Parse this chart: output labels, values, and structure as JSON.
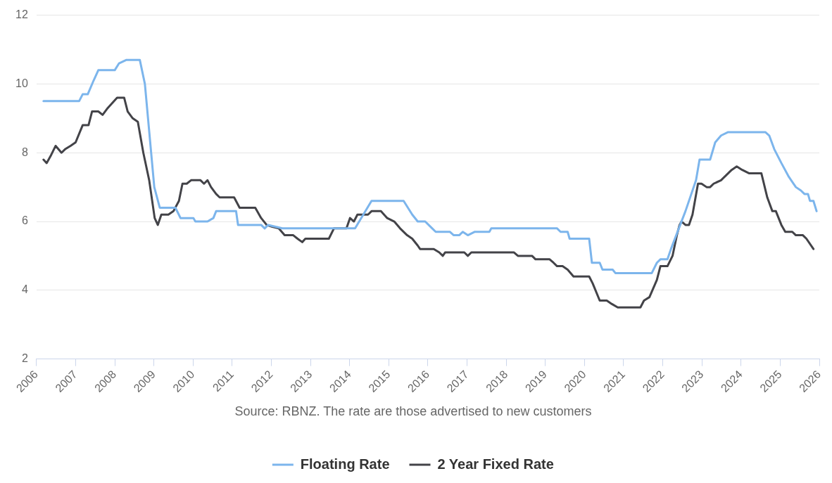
{
  "chart_data": {
    "type": "line",
    "annotations": [
      "Source: RBNZ. The rate are those advertised to new customers"
    ],
    "xlim": [
      2006,
      2026
    ],
    "xticks": [
      2006,
      2007,
      2008,
      2009,
      2010,
      2011,
      2012,
      2013,
      2014,
      2015,
      2016,
      2017,
      2018,
      2019,
      2020,
      2021,
      2022,
      2023,
      2024,
      2025,
      2026
    ],
    "ylim": [
      2,
      12
    ],
    "yticks": [
      2,
      4,
      6,
      8,
      10,
      12
    ],
    "grid": "y",
    "legend": "bottom",
    "marker": "none",
    "line_style": "solid",
    "series": [
      {
        "name": "Floating Rate",
        "color": "#7cb5ec",
        "x": [
          2006.18,
          2007.09,
          2007.18,
          2007.31,
          2007.46,
          2007.58,
          2008.0,
          2008.11,
          2008.3,
          2008.64,
          2008.77,
          2009.01,
          2009.15,
          2009.55,
          2009.68,
          2010.01,
          2010.06,
          2010.37,
          2010.52,
          2010.59,
          2011.1,
          2011.15,
          2011.74,
          2011.83,
          2011.92,
          2012.28,
          2014.14,
          2014.56,
          2015.38,
          2015.6,
          2015.74,
          2015.93,
          2016.11,
          2016.2,
          2016.56,
          2016.66,
          2016.8,
          2016.89,
          2017.02,
          2017.2,
          2017.57,
          2017.62,
          2019.3,
          2019.39,
          2019.57,
          2019.62,
          2020.12,
          2020.19,
          2020.39,
          2020.46,
          2020.72,
          2020.79,
          2021.72,
          2021.85,
          2021.94,
          2022.12,
          2022.21,
          2022.58,
          2022.85,
          2022.94,
          2023.21,
          2023.34,
          2023.49,
          2023.67,
          2024.62,
          2024.72,
          2024.85,
          2025.03,
          2025.22,
          2025.4,
          2025.53,
          2025.62,
          2025.71,
          2025.76,
          2025.85,
          2025.93
        ],
        "values": [
          9.5,
          9.5,
          9.7,
          9.7,
          10.1,
          10.4,
          10.4,
          10.6,
          10.7,
          10.7,
          10.0,
          7.0,
          6.4,
          6.4,
          6.1,
          6.1,
          6.0,
          6.0,
          6.1,
          6.3,
          6.3,
          5.9,
          5.9,
          5.8,
          5.9,
          5.8,
          5.8,
          6.6,
          6.6,
          6.2,
          6.0,
          6.0,
          5.8,
          5.7,
          5.7,
          5.6,
          5.6,
          5.7,
          5.6,
          5.7,
          5.7,
          5.8,
          5.8,
          5.7,
          5.7,
          5.5,
          5.5,
          4.8,
          4.8,
          4.6,
          4.6,
          4.5,
          4.5,
          4.8,
          4.9,
          4.9,
          5.2,
          6.3,
          7.2,
          7.8,
          7.8,
          8.3,
          8.5,
          8.6,
          8.6,
          8.5,
          8.1,
          7.7,
          7.3,
          7.0,
          6.9,
          6.8,
          6.8,
          6.6,
          6.6,
          6.3
        ]
      },
      {
        "name": "2 Year Fixed Rate",
        "color": "#434348",
        "x": [
          2006.18,
          2006.26,
          2006.36,
          2006.49,
          2006.64,
          2006.73,
          2006.87,
          2007.0,
          2007.18,
          2007.33,
          2007.42,
          2007.58,
          2007.69,
          2007.82,
          2008.06,
          2008.24,
          2008.33,
          2008.46,
          2008.59,
          2008.73,
          2008.88,
          2009.02,
          2009.1,
          2009.19,
          2009.37,
          2009.5,
          2009.64,
          2009.73,
          2009.84,
          2009.95,
          2010.19,
          2010.28,
          2010.37,
          2010.46,
          2010.59,
          2010.68,
          2011.05,
          2011.19,
          2011.59,
          2011.74,
          2011.88,
          2012.01,
          2012.19,
          2012.34,
          2012.56,
          2012.67,
          2012.79,
          2012.87,
          2013.47,
          2013.6,
          2013.92,
          2014.01,
          2014.11,
          2014.2,
          2014.47,
          2014.56,
          2014.8,
          2014.96,
          2015.14,
          2015.29,
          2015.47,
          2015.6,
          2015.74,
          2015.8,
          2016.15,
          2016.29,
          2016.38,
          2016.44,
          2016.93,
          2017.02,
          2017.11,
          2018.2,
          2018.3,
          2018.66,
          2018.75,
          2019.11,
          2019.21,
          2019.3,
          2019.44,
          2019.57,
          2019.72,
          2020.12,
          2020.21,
          2020.39,
          2020.57,
          2020.7,
          2020.85,
          2021.43,
          2021.52,
          2021.66,
          2021.85,
          2021.94,
          2022.12,
          2022.25,
          2022.36,
          2022.43,
          2022.48,
          2022.58,
          2022.67,
          2022.76,
          2022.9,
          2022.99,
          2023.12,
          2023.21,
          2023.3,
          2023.49,
          2023.76,
          2023.89,
          2024.03,
          2024.21,
          2024.52,
          2024.67,
          2024.8,
          2024.89,
          2025.03,
          2025.13,
          2025.31,
          2025.4,
          2025.58,
          2025.67,
          2025.85
        ],
        "values": [
          7.8,
          7.7,
          7.9,
          8.2,
          8.0,
          8.1,
          8.2,
          8.3,
          8.8,
          8.8,
          9.2,
          9.2,
          9.1,
          9.3,
          9.6,
          9.6,
          9.2,
          9.0,
          8.9,
          8.0,
          7.2,
          6.1,
          5.9,
          6.2,
          6.2,
          6.3,
          6.6,
          7.1,
          7.1,
          7.2,
          7.2,
          7.1,
          7.2,
          7.0,
          6.8,
          6.7,
          6.7,
          6.4,
          6.4,
          6.1,
          5.9,
          5.85,
          5.8,
          5.6,
          5.6,
          5.5,
          5.4,
          5.5,
          5.5,
          5.8,
          5.8,
          6.1,
          6.0,
          6.2,
          6.2,
          6.3,
          6.3,
          6.1,
          6.0,
          5.8,
          5.6,
          5.5,
          5.3,
          5.2,
          5.2,
          5.1,
          5.0,
          5.1,
          5.1,
          5.0,
          5.1,
          5.1,
          5.0,
          5.0,
          4.9,
          4.9,
          4.8,
          4.7,
          4.7,
          4.6,
          4.4,
          4.4,
          4.2,
          3.7,
          3.7,
          3.6,
          3.5,
          3.5,
          3.7,
          3.8,
          4.3,
          4.7,
          4.7,
          5.0,
          5.6,
          5.9,
          6.0,
          5.9,
          5.9,
          6.2,
          7.1,
          7.1,
          7.0,
          7.0,
          7.1,
          7.2,
          7.5,
          7.6,
          7.5,
          7.4,
          7.4,
          6.7,
          6.3,
          6.3,
          5.9,
          5.7,
          5.7,
          5.6,
          5.6,
          5.5,
          5.2
        ]
      }
    ]
  }
}
